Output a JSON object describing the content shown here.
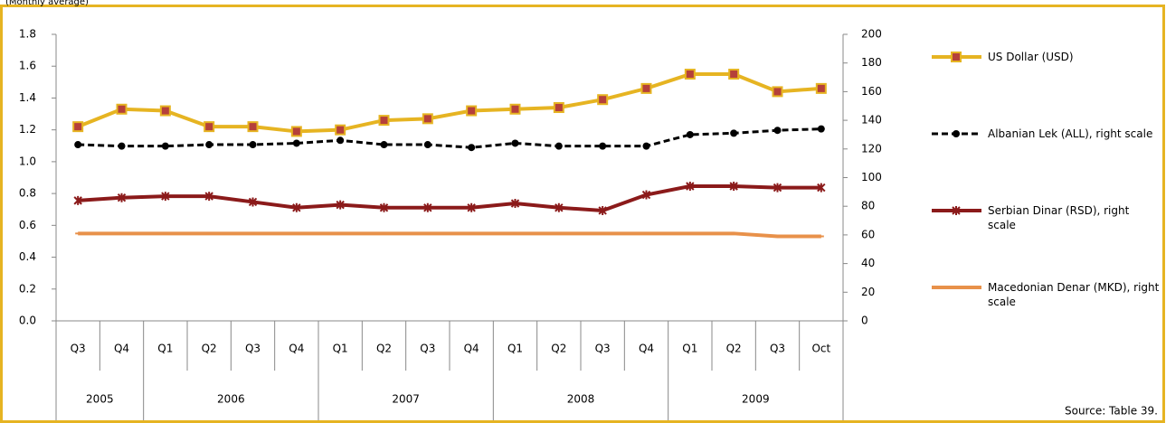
{
  "chart_data": {
    "type": "line",
    "subtitle": "(Monthly average)",
    "source": "Source: Table 39.",
    "categories": [
      "Q3",
      "Q4",
      "Q1",
      "Q2",
      "Q3",
      "Q4",
      "Q1",
      "Q2",
      "Q3",
      "Q4",
      "Q1",
      "Q2",
      "Q3",
      "Q4",
      "Q1",
      "Q2",
      "Q3",
      "Oct"
    ],
    "years": [
      "2005",
      null,
      "2006",
      null,
      null,
      null,
      "2007",
      null,
      null,
      null,
      "2008",
      null,
      null,
      null,
      "2009",
      null,
      null,
      null
    ],
    "ylim": [
      0,
      1.8
    ],
    "yticks": [
      {
        "value": 0,
        "label": "0.0"
      },
      0.2,
      0.4,
      0.6,
      0.8,
      {
        "value": 1,
        "label": "1.0"
      },
      1.2,
      1.4,
      1.6,
      1.8
    ],
    "y2lim": [
      0,
      200
    ],
    "y2ticks": [
      0,
      20,
      40,
      60,
      80,
      100,
      120,
      140,
      160,
      180,
      200
    ],
    "legend": "right",
    "series": [
      {
        "name": "US Dollar (USD)",
        "color": "#e6b422",
        "marker": "square",
        "values": [
          1.22,
          1.33,
          1.32,
          1.22,
          1.22,
          1.19,
          1.2,
          1.26,
          1.27,
          1.32,
          1.33,
          1.34,
          1.39,
          1.46,
          1.55,
          1.55,
          1.44,
          1.46
        ]
      },
      {
        "name": "Albanian Lek (ALL), right scale",
        "color": "#000000",
        "marker": "circle",
        "dashed": true,
        "axis": "y2",
        "values": [
          123,
          122,
          122,
          123,
          123,
          124,
          126,
          123,
          123,
          121,
          124,
          122,
          122,
          122,
          130,
          131,
          133,
          134
        ]
      },
      {
        "name": "Serbian Dinar (RSD), right scale",
        "color": "#8b1a1a",
        "marker": "x",
        "axis": "y2",
        "values": [
          84,
          86,
          87,
          87,
          83,
          79,
          81,
          79,
          79,
          79,
          82,
          79,
          77,
          88,
          94,
          94,
          93,
          93
        ]
      },
      {
        "name": "Macedonian Denar (MKD), right scale",
        "color": "#e8914a",
        "marker": "dash",
        "axis": "y2",
        "values": [
          61,
          61,
          61,
          61,
          61,
          61,
          61,
          61,
          61,
          61,
          61,
          61,
          61,
          61,
          61,
          61,
          59,
          59
        ]
      }
    ]
  }
}
